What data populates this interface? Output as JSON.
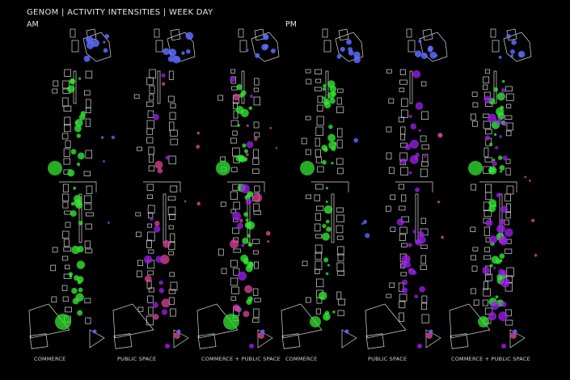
{
  "header": {
    "title": "GENOM | ACTIVITY INTENSITIES | WEEK DAY",
    "am_label": "AM",
    "pm_label": "PM"
  },
  "colors": {
    "background": "#000000",
    "commerce": "#33e633",
    "public_space": "#e0449a",
    "public_space_alt": "#a020f0",
    "other": "#5a6cff",
    "outline": "#d9d9d9"
  },
  "columns": [
    {
      "label": "COMMERCE",
      "period": "AM",
      "layers": [
        "commerce",
        "other"
      ]
    },
    {
      "label": "PUBLIC SPACE",
      "period": "AM",
      "layers": [
        "public_space",
        "other"
      ]
    },
    {
      "label": "COMMERCE + PUBLIC SPACE",
      "period": "AM",
      "layers": [
        "commerce",
        "public_space",
        "other"
      ]
    },
    {
      "label": "COMMERCE",
      "period": "PM",
      "layers": [
        "commerce",
        "other"
      ]
    },
    {
      "label": "PUBLIC SPACE",
      "period": "PM",
      "layers": [
        "public_space",
        "other"
      ]
    },
    {
      "label": "COMMERCE + PUBLIC SPACE",
      "period": "PM",
      "layers": [
        "commerce",
        "public_space",
        "other"
      ]
    }
  ]
}
